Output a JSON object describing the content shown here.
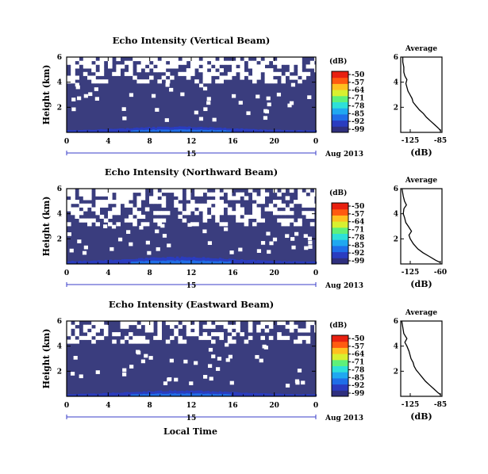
{
  "figure": {
    "xlabel": "Local Time",
    "date_label": "Aug 2013",
    "day_label": "15",
    "unit_label": "(dB)",
    "colors": {
      "background": "#ffffff",
      "plot_fill": "#3a3d7e",
      "colormap": [
        "#2f2f7e",
        "#2a3cc0",
        "#1f6ee8",
        "#1fa8f0",
        "#2ee0d8",
        "#5ef07a",
        "#d8f030",
        "#ffc020",
        "#ff5a10",
        "#e82010"
      ]
    }
  },
  "chart_data": [
    {
      "type": "heatmap",
      "title": "Echo Intensity (Vertical Beam)",
      "ylabel": "Height (km)",
      "xlim": [
        0,
        24
      ],
      "ylim": [
        0,
        6
      ],
      "x_ticks": [
        "0",
        "4",
        "8",
        "12",
        "16",
        "20",
        "0"
      ],
      "y_ticks": [
        "6",
        "4",
        "2"
      ],
      "colorbar": {
        "ticks": [
          "-50",
          "-57",
          "-64",
          "-71",
          "-78",
          "-85",
          "-92",
          "-99"
        ],
        "range_db": [
          -99,
          -50
        ]
      },
      "echo_top_km": 4.2,
      "gap_fraction_above_top": 0.65,
      "strong_echo_band_km": [
        0,
        0.5
      ],
      "average_profile": {
        "title": "Average",
        "xlabel": "(dB)",
        "x_ticks": [
          "-125",
          "-85"
        ],
        "y_ticks": [
          "6",
          "4",
          "2"
        ],
        "xlim": [
          -125,
          -85
        ],
        "ylim": [
          0,
          6
        ],
        "points": [
          [
            -86,
            0.1
          ],
          [
            -88,
            0.3
          ],
          [
            -92,
            0.6
          ],
          [
            -96,
            0.9
          ],
          [
            -100,
            1.2
          ],
          [
            -103,
            1.5
          ],
          [
            -107,
            1.8
          ],
          [
            -110,
            2.1
          ],
          [
            -113,
            2.4
          ],
          [
            -114,
            2.7
          ],
          [
            -116,
            3.0
          ],
          [
            -118,
            3.3
          ],
          [
            -119,
            3.6
          ],
          [
            -120,
            3.9
          ],
          [
            -119,
            4.2
          ],
          [
            -121,
            4.5
          ],
          [
            -122,
            4.8
          ],
          [
            -122,
            5.2
          ],
          [
            -123,
            5.6
          ],
          [
            -123,
            6.0
          ]
        ]
      }
    },
    {
      "type": "heatmap",
      "title": "Echo Intensity (Northward Beam)",
      "ylabel": "Height (km)",
      "xlim": [
        0,
        24
      ],
      "ylim": [
        0,
        6
      ],
      "x_ticks": [
        "0",
        "4",
        "8",
        "12",
        "16",
        "20",
        "0"
      ],
      "y_ticks": [
        "6",
        "4",
        "2"
      ],
      "colorbar": {
        "ticks": [
          "-50",
          "-57",
          "-64",
          "-71",
          "-78",
          "-85",
          "-92",
          "-99"
        ],
        "range_db": [
          -99,
          -50
        ]
      },
      "echo_top_km": 3.3,
      "gap_fraction_above_top": 0.6,
      "strong_echo_band_km": [
        0,
        0.6
      ],
      "average_profile": {
        "title": "Average",
        "xlabel": "(dB)",
        "x_ticks": [
          "-125",
          "-60"
        ],
        "y_ticks": [
          "6",
          "4",
          "2"
        ],
        "xlim": [
          -125,
          -60
        ],
        "ylim": [
          0,
          6
        ],
        "points": [
          [
            -62,
            0.1
          ],
          [
            -70,
            0.3
          ],
          [
            -80,
            0.6
          ],
          [
            -90,
            0.9
          ],
          [
            -98,
            1.2
          ],
          [
            -105,
            1.6
          ],
          [
            -110,
            2.0
          ],
          [
            -112,
            2.3
          ],
          [
            -108,
            2.6
          ],
          [
            -113,
            3.0
          ],
          [
            -117,
            3.3
          ],
          [
            -119,
            3.7
          ],
          [
            -121,
            4.0
          ],
          [
            -120,
            4.4
          ],
          [
            -116,
            4.7
          ],
          [
            -119,
            5.0
          ],
          [
            -121,
            5.4
          ],
          [
            -122,
            5.7
          ],
          [
            -123,
            6.0
          ]
        ]
      }
    },
    {
      "type": "heatmap",
      "title": "Echo Intensity (Eastward Beam)",
      "ylabel": "Height (km)",
      "xlim": [
        0,
        24
      ],
      "ylim": [
        0,
        6
      ],
      "x_ticks": [
        "0",
        "4",
        "8",
        "12",
        "16",
        "20",
        "0"
      ],
      "y_ticks": [
        "6",
        "4",
        "2"
      ],
      "colorbar": {
        "ticks": [
          "-50",
          "-57",
          "-64",
          "-71",
          "-78",
          "-85",
          "-92",
          "-99"
        ],
        "range_db": [
          -99,
          -50
        ]
      },
      "echo_top_km": 4.3,
      "gap_fraction_above_top": 0.55,
      "strong_echo_band_km": [
        0,
        0.5
      ],
      "average_profile": {
        "title": "Average",
        "xlabel": "(dB)",
        "x_ticks": [
          "-125",
          "-85"
        ],
        "y_ticks": [
          "6",
          "4",
          "2"
        ],
        "xlim": [
          -125,
          -85
        ],
        "ylim": [
          0,
          6
        ],
        "points": [
          [
            -86,
            0.1
          ],
          [
            -89,
            0.3
          ],
          [
            -93,
            0.6
          ],
          [
            -97,
            0.9
          ],
          [
            -101,
            1.2
          ],
          [
            -104,
            1.5
          ],
          [
            -107,
            1.8
          ],
          [
            -110,
            2.1
          ],
          [
            -112,
            2.4
          ],
          [
            -113,
            2.7
          ],
          [
            -115,
            3.0
          ],
          [
            -116,
            3.3
          ],
          [
            -117,
            3.6
          ],
          [
            -119,
            4.0
          ],
          [
            -121,
            4.3
          ],
          [
            -119,
            4.6
          ],
          [
            -122,
            5.0
          ],
          [
            -123,
            5.5
          ],
          [
            -124,
            6.0
          ]
        ]
      }
    }
  ]
}
